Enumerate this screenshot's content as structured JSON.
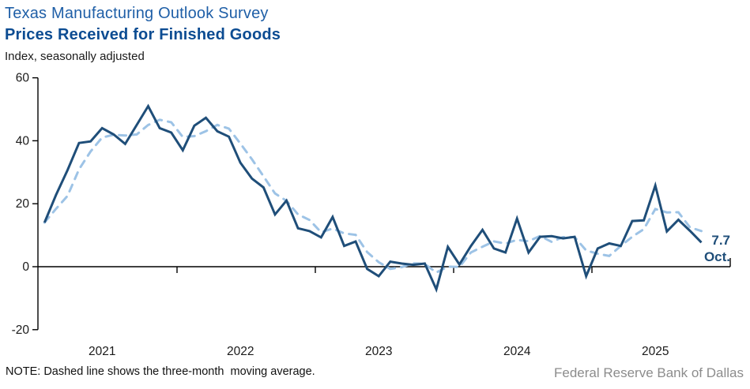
{
  "header": {
    "title_line1": "Texas Manufacturing Outlook Survey",
    "title_line2": "Prices Received for Finished Goods",
    "subtitle": "Index, seasonally adjusted"
  },
  "chart_data": {
    "type": "line",
    "title": "Texas Manufacturing Outlook Survey — Prices Received for Finished Goods",
    "ylabel": "Index, seasonally adjusted",
    "ylim": [
      -20,
      60
    ],
    "y_ticks": [
      60,
      40,
      20,
      0,
      -20
    ],
    "y_tick_labels": [
      "60",
      "40",
      "20",
      "0",
      "-20"
    ],
    "x_year_labels": [
      "2021",
      "2022",
      "2023",
      "2024",
      "2025"
    ],
    "start_month": "2021-01",
    "end_month": "2025-10",
    "grid": false,
    "legend": "none (dashed line explained in note)",
    "moving_average_window": 3,
    "series": [
      {
        "name": "Prices received for finished goods (monthly)",
        "style": "solid",
        "color": "#1F4E79",
        "values": [
          14.0,
          22.8,
          30.7,
          39.3,
          39.8,
          44.0,
          42.0,
          39.0,
          45.0,
          51.0,
          44.0,
          42.6,
          37.0,
          44.8,
          47.3,
          43.0,
          41.3,
          33.0,
          28.0,
          25.2,
          16.6,
          21.0,
          12.2,
          11.3,
          9.3,
          15.8,
          6.6,
          8.0,
          -0.7,
          -3.0,
          1.6,
          1.0,
          0.6,
          1.0,
          -7.2,
          6.3,
          0.7,
          6.6,
          11.7,
          5.8,
          4.5,
          15.3,
          4.5,
          9.5,
          9.7,
          9.0,
          9.5,
          -3.0,
          5.8,
          7.4,
          6.6,
          14.5,
          14.7,
          25.8,
          11.2,
          14.9,
          11.4,
          7.7
        ]
      },
      {
        "name": "Three-month moving average",
        "style": "dashed",
        "color": "#9DC3E6",
        "derived": "three-month moving average of the monthly series"
      }
    ],
    "last_point": {
      "month": "Oct.",
      "value": 7.7
    }
  },
  "annotation": {
    "value": "7.7",
    "month": "Oct."
  },
  "note": "NOTE: Dashed line shows the three-month  moving average.",
  "source": "Federal Reserve Bank of Dallas",
  "colors": {
    "monthly_line": "#1F4E79",
    "moving_average_line": "#9DC3E6",
    "axis": "#000000",
    "title_line1": "#1F5FA7",
    "title_line2": "#0C4C92",
    "source_text": "#8C8C8C"
  }
}
